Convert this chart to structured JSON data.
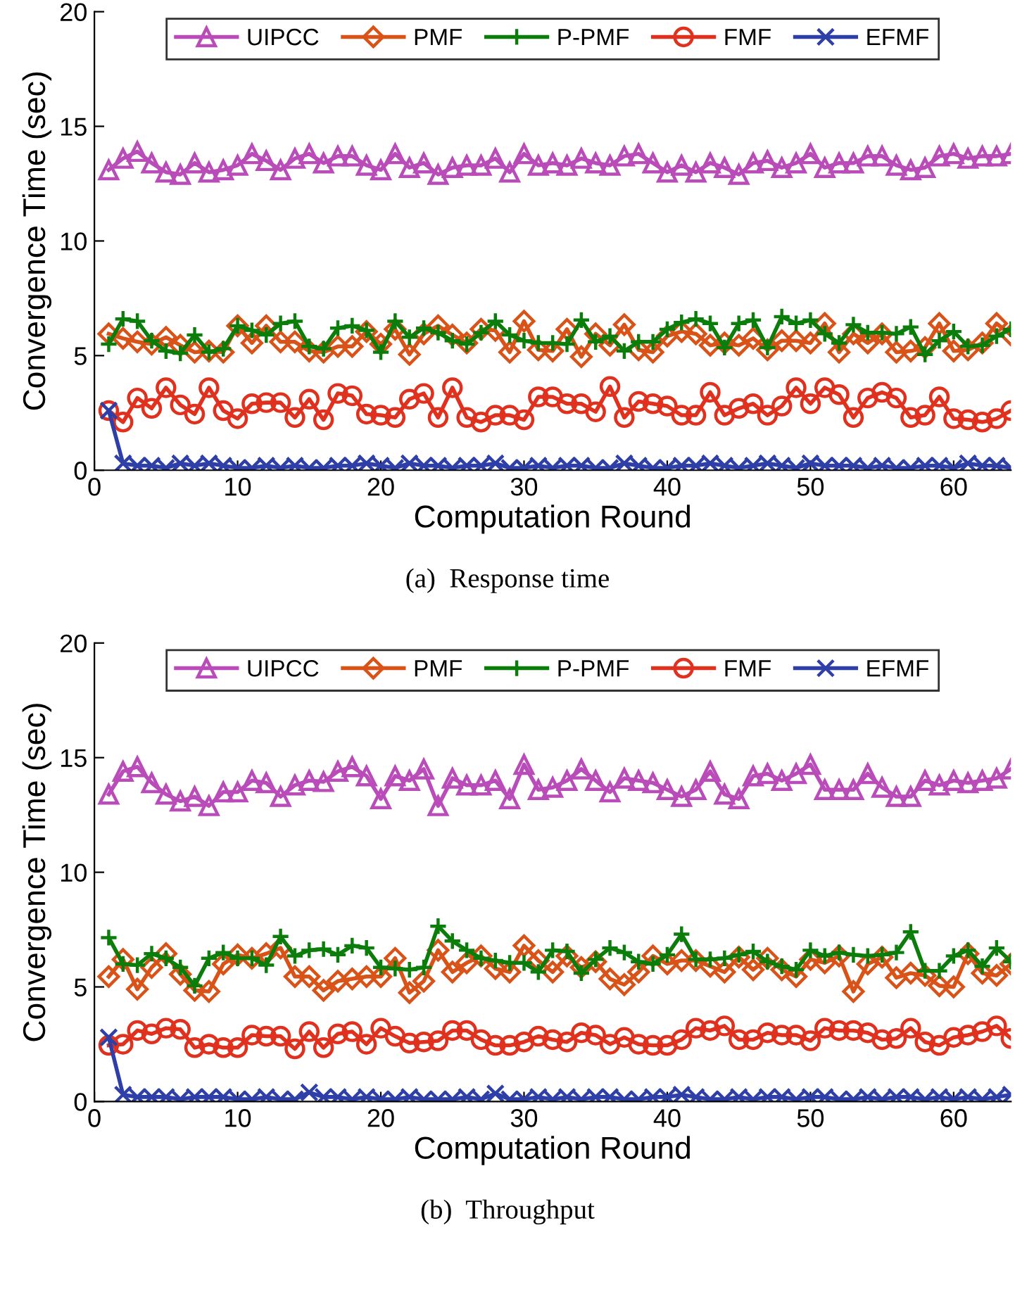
{
  "chart_data": [
    {
      "type": "line",
      "xlabel": "Computation Round",
      "ylabel": "Convergence Time (sec)",
      "annotations": [
        "(a)  Response time"
      ],
      "xlim": [
        0,
        64
      ],
      "ylim": [
        0,
        20
      ],
      "xticks": [
        0,
        10,
        20,
        30,
        40,
        50,
        60
      ],
      "yticks": [
        0,
        5,
        10,
        15,
        20
      ],
      "grid": false,
      "legend": "top",
      "line_style": "solid",
      "x": [
        1,
        2,
        3,
        4,
        5,
        6,
        7,
        8,
        9,
        10,
        11,
        12,
        13,
        14,
        15,
        16,
        17,
        18,
        19,
        20,
        21,
        22,
        23,
        24,
        25,
        26,
        27,
        28,
        29,
        30,
        31,
        32,
        33,
        34,
        35,
        36,
        37,
        38,
        39,
        40,
        41,
        42,
        43,
        44,
        45,
        46,
        47,
        48,
        49,
        50,
        51,
        52,
        53,
        54,
        55,
        56,
        57,
        58,
        59,
        60,
        61,
        62,
        63,
        64
      ],
      "series": [
        {
          "name": "UIPCC",
          "color": "#b94cb9",
          "marker": "triangle",
          "values": [
            13.1,
            13.6,
            13.9,
            13.4,
            13.0,
            12.9,
            13.4,
            13.0,
            13.1,
            13.3,
            13.8,
            13.5,
            13.1,
            13.6,
            13.8,
            13.4,
            13.7,
            13.7,
            13.3,
            13.1,
            13.8,
            13.2,
            13.4,
            12.9,
            13.2,
            13.3,
            13.3,
            13.6,
            13.0,
            13.8,
            13.3,
            13.4,
            13.3,
            13.6,
            13.4,
            13.3,
            13.7,
            13.8,
            13.4,
            13.0,
            13.3,
            13.0,
            13.4,
            13.2,
            12.9,
            13.4,
            13.5,
            13.2,
            13.4,
            13.8,
            13.2,
            13.4,
            13.4,
            13.7,
            13.7,
            13.3,
            13.1,
            13.2,
            13.7,
            13.8,
            13.6,
            13.7,
            13.7,
            13.8
          ]
        },
        {
          "name": "PMF",
          "color": "#d95319",
          "marker": "diamond",
          "values": [
            5.95,
            5.75,
            5.6,
            5.5,
            5.8,
            5.45,
            5.15,
            5.2,
            5.15,
            6.3,
            5.55,
            6.3,
            5.6,
            5.6,
            5.2,
            5.15,
            5.4,
            5.4,
            6.05,
            5.5,
            6.15,
            5.05,
            5.95,
            6.3,
            5.9,
            5.55,
            6.15,
            6.1,
            5.15,
            6.5,
            5.25,
            5.2,
            6.15,
            4.95,
            5.95,
            5.45,
            6.35,
            5.25,
            5.15,
            5.85,
            6.05,
            5.95,
            5.45,
            5.55,
            5.45,
            5.75,
            5.25,
            5.65,
            5.65,
            5.55,
            6.4,
            5.15,
            5.95,
            5.55,
            5.95,
            5.15,
            5.2,
            5.35,
            6.4,
            5.2,
            5.25,
            5.55,
            6.4,
            5.9
          ]
        },
        {
          "name": "P-PMF",
          "color": "#0b7d0b",
          "marker": "plus",
          "values": [
            5.5,
            6.6,
            6.5,
            5.65,
            5.2,
            5.1,
            5.9,
            5.15,
            5.3,
            6.3,
            6.1,
            5.9,
            6.4,
            6.5,
            5.4,
            5.3,
            6.2,
            6.3,
            6.1,
            5.15,
            6.5,
            5.8,
            6.2,
            6.0,
            5.65,
            5.5,
            6.0,
            6.5,
            5.9,
            5.65,
            5.55,
            5.55,
            5.5,
            6.55,
            5.6,
            5.85,
            5.2,
            5.6,
            5.6,
            6.15,
            6.45,
            6.6,
            6.4,
            5.35,
            6.4,
            6.55,
            5.35,
            6.7,
            6.4,
            6.55,
            5.95,
            5.55,
            6.35,
            6.0,
            6.0,
            5.95,
            6.25,
            5.05,
            5.65,
            6.05,
            5.4,
            5.45,
            5.85,
            6.15
          ]
        },
        {
          "name": "FMF",
          "color": "#e0301e",
          "marker": "circle",
          "values": [
            2.6,
            2.1,
            3.15,
            2.7,
            3.6,
            2.85,
            2.45,
            3.6,
            2.6,
            2.25,
            2.9,
            2.95,
            2.95,
            2.3,
            3.1,
            2.2,
            3.35,
            3.25,
            2.45,
            2.4,
            2.3,
            3.1,
            3.35,
            2.3,
            3.6,
            2.3,
            2.1,
            2.4,
            2.4,
            2.2,
            3.2,
            3.2,
            2.9,
            2.9,
            2.55,
            3.65,
            2.3,
            3.0,
            2.9,
            2.8,
            2.4,
            2.4,
            3.4,
            2.4,
            2.7,
            2.9,
            2.4,
            2.8,
            3.6,
            2.9,
            3.6,
            3.3,
            2.3,
            3.15,
            3.4,
            3.15,
            2.3,
            2.4,
            3.2,
            2.25,
            2.2,
            2.1,
            2.25,
            2.6
          ]
        },
        {
          "name": "EFMF",
          "color": "#2e3fa8",
          "marker": "cross",
          "values": [
            2.6,
            0.3,
            0.2,
            0.2,
            0.1,
            0.3,
            0.2,
            0.3,
            0.2,
            0.1,
            0.1,
            0.2,
            0.1,
            0.2,
            0.1,
            0.1,
            0.2,
            0.2,
            0.3,
            0.2,
            0.1,
            0.3,
            0.2,
            0.2,
            0.1,
            0.2,
            0.2,
            0.3,
            0.1,
            0.1,
            0.2,
            0.1,
            0.2,
            0.2,
            0.1,
            0.1,
            0.3,
            0.2,
            0.1,
            0.1,
            0.2,
            0.2,
            0.3,
            0.2,
            0.1,
            0.2,
            0.3,
            0.2,
            0.1,
            0.3,
            0.2,
            0.2,
            0.2,
            0.1,
            0.2,
            0.1,
            0.1,
            0.2,
            0.2,
            0.1,
            0.3,
            0.2,
            0.2,
            0.1
          ]
        }
      ]
    },
    {
      "type": "line",
      "xlabel": "Computation Round",
      "ylabel": "Convergence Time (sec)",
      "annotations": [
        "(b)  Throughput"
      ],
      "xlim": [
        0,
        64
      ],
      "ylim": [
        0,
        20
      ],
      "xticks": [
        0,
        10,
        20,
        30,
        40,
        50,
        60
      ],
      "yticks": [
        0,
        5,
        10,
        15,
        20
      ],
      "grid": false,
      "legend": "top",
      "line_style": "solid",
      "x": [
        1,
        2,
        3,
        4,
        5,
        6,
        7,
        8,
        9,
        10,
        11,
        12,
        13,
        14,
        15,
        16,
        17,
        18,
        19,
        20,
        21,
        22,
        23,
        24,
        25,
        26,
        27,
        28,
        29,
        30,
        31,
        32,
        33,
        34,
        35,
        36,
        37,
        38,
        39,
        40,
        41,
        42,
        43,
        44,
        45,
        46,
        47,
        48,
        49,
        50,
        51,
        52,
        53,
        54,
        55,
        56,
        57,
        58,
        59,
        60,
        61,
        62,
        63,
        64
      ],
      "series": [
        {
          "name": "UIPCC",
          "color": "#b94cb9",
          "marker": "triangle",
          "values": [
            13.4,
            14.4,
            14.6,
            13.9,
            13.4,
            13.1,
            13.3,
            12.9,
            13.5,
            13.5,
            14.0,
            13.9,
            13.3,
            13.8,
            14.0,
            13.95,
            14.4,
            14.6,
            14.2,
            13.2,
            14.2,
            14.0,
            14.5,
            12.9,
            14.1,
            13.8,
            13.8,
            14.0,
            13.2,
            14.7,
            13.6,
            13.7,
            14.0,
            14.5,
            14.0,
            13.5,
            14.1,
            14.0,
            13.9,
            13.6,
            13.3,
            13.6,
            14.4,
            13.4,
            13.2,
            14.2,
            14.3,
            14.0,
            14.3,
            14.7,
            13.6,
            13.6,
            13.6,
            14.3,
            13.7,
            13.3,
            13.3,
            14.0,
            13.8,
            14.0,
            13.9,
            14.0,
            14.1,
            14.5
          ]
        },
        {
          "name": "PMF",
          "color": "#d95319",
          "marker": "diamond",
          "values": [
            5.45,
            6.2,
            4.9,
            5.85,
            6.45,
            5.55,
            4.85,
            4.8,
            6.0,
            6.4,
            6.25,
            6.45,
            6.7,
            5.45,
            5.45,
            4.85,
            5.25,
            5.35,
            5.45,
            5.45,
            6.25,
            4.75,
            5.25,
            6.6,
            5.65,
            6.05,
            6.35,
            5.8,
            5.65,
            6.8,
            6.15,
            5.65,
            6.35,
            5.85,
            6.1,
            5.35,
            5.1,
            5.65,
            6.35,
            6.0,
            6.15,
            6.15,
            5.9,
            5.65,
            6.3,
            5.75,
            6.25,
            5.75,
            5.45,
            6.2,
            6.05,
            6.35,
            4.8,
            6.0,
            6.3,
            5.4,
            5.6,
            5.5,
            5.05,
            5.0,
            6.45,
            5.6,
            5.5,
            6.0
          ]
        },
        {
          "name": "P-PMF",
          "color": "#0b7d0b",
          "marker": "plus",
          "values": [
            7.15,
            6.0,
            5.95,
            6.45,
            6.25,
            5.85,
            5.05,
            6.25,
            6.5,
            6.25,
            6.25,
            5.95,
            7.2,
            6.35,
            6.6,
            6.65,
            6.4,
            6.8,
            6.7,
            5.85,
            5.8,
            5.75,
            5.85,
            7.65,
            7.0,
            6.6,
            6.25,
            6.15,
            6.05,
            6.05,
            5.65,
            6.6,
            6.55,
            5.6,
            6.2,
            6.7,
            6.5,
            6.1,
            6.0,
            6.4,
            7.3,
            6.2,
            6.2,
            6.25,
            6.4,
            6.55,
            6.1,
            5.9,
            5.75,
            6.6,
            6.35,
            6.5,
            6.4,
            6.35,
            6.4,
            6.5,
            7.4,
            5.7,
            5.7,
            6.35,
            6.6,
            5.9,
            6.7,
            6.1
          ]
        },
        {
          "name": "FMF",
          "color": "#e0301e",
          "marker": "circle",
          "values": [
            2.45,
            2.5,
            3.1,
            2.95,
            3.2,
            3.15,
            2.35,
            2.5,
            2.35,
            2.35,
            2.9,
            2.85,
            2.85,
            2.3,
            3.05,
            2.35,
            2.95,
            3.05,
            2.5,
            3.2,
            2.85,
            2.55,
            2.6,
            2.65,
            3.1,
            3.1,
            2.7,
            2.45,
            2.45,
            2.6,
            2.85,
            2.7,
            2.6,
            3.0,
            2.9,
            2.5,
            2.8,
            2.5,
            2.45,
            2.45,
            2.7,
            3.2,
            3.1,
            3.3,
            2.7,
            2.7,
            3.0,
            2.9,
            2.9,
            2.65,
            3.2,
            3.1,
            3.1,
            3.0,
            2.7,
            2.75,
            3.2,
            2.6,
            2.45,
            2.8,
            2.9,
            3.05,
            3.3,
            2.75
          ]
        },
        {
          "name": "EFMF",
          "color": "#2e3fa8",
          "marker": "cross",
          "values": [
            2.8,
            0.3,
            0.2,
            0.2,
            0.2,
            0.1,
            0.2,
            0.2,
            0.2,
            0.1,
            0.1,
            0.2,
            0.1,
            0.1,
            0.4,
            0.2,
            0.2,
            0.1,
            0.2,
            0.1,
            0.1,
            0.2,
            0.1,
            0.1,
            0.1,
            0.2,
            0.1,
            0.35,
            0.1,
            0.1,
            0.2,
            0.1,
            0.2,
            0.1,
            0.2,
            0.2,
            0.1,
            0.1,
            0.2,
            0.2,
            0.3,
            0.2,
            0.1,
            0.1,
            0.2,
            0.1,
            0.2,
            0.2,
            0.1,
            0.2,
            0.2,
            0.1,
            0.1,
            0.2,
            0.1,
            0.2,
            0.2,
            0.1,
            0.2,
            0.1,
            0.2,
            0.1,
            0.2,
            0.3
          ]
        }
      ]
    }
  ]
}
